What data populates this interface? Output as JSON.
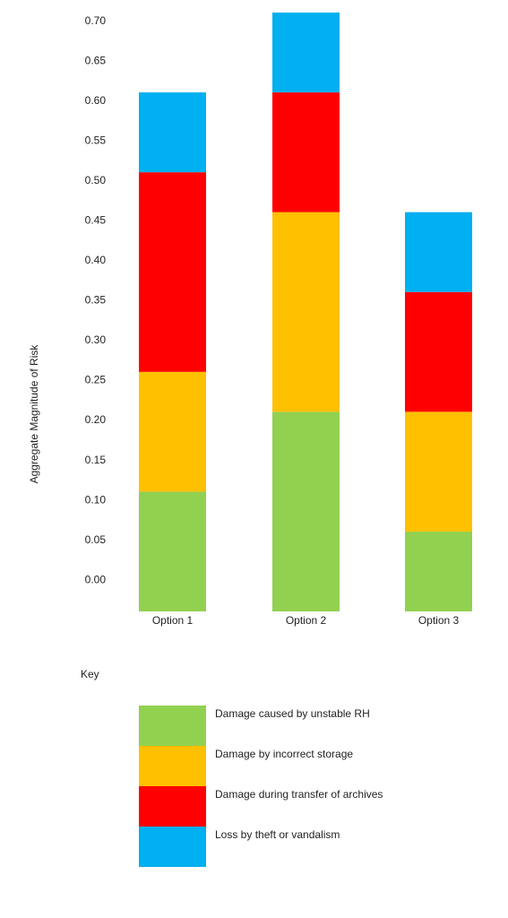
{
  "chart_data": {
    "type": "bar",
    "stacked": true,
    "categories": [
      "Option 1",
      "Option 2",
      "Option 3"
    ],
    "series": [
      {
        "name": "Damage caused by unstable RH",
        "color": "#92d050",
        "values": [
          0.11,
          0.21,
          0.06
        ]
      },
      {
        "name": "Damage by incorrect storage",
        "color": "#ffc000",
        "values": [
          0.15,
          0.25,
          0.15
        ]
      },
      {
        "name": "Damage during transfer of archives",
        "color": "#ff0000",
        "values": [
          0.25,
          0.15,
          0.15
        ]
      },
      {
        "name": "Loss by theft or vandalism",
        "color": "#00b0f0",
        "values": [
          0.1,
          0.1,
          0.1
        ]
      }
    ],
    "y_ticks": [
      "0.00",
      "0.05",
      "0.10",
      "0.15",
      "0.20",
      "0.25",
      "0.30",
      "0.35",
      "0.40",
      "0.45",
      "0.50",
      "0.55",
      "0.60",
      "0.65",
      "0.70"
    ],
    "ylabel": "Aggregate Magnitude of Risk",
    "xlabel": "",
    "ylim": [
      -0.04,
      0.71
    ],
    "grid": false,
    "legend_title": "Key",
    "legend_position": "bottom"
  }
}
